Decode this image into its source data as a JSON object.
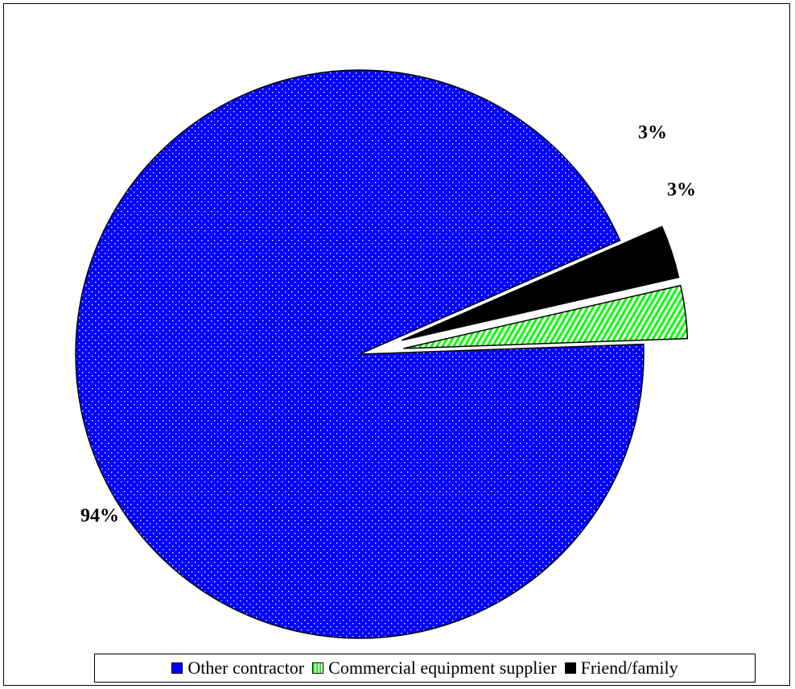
{
  "chart_data": {
    "type": "pie",
    "title": "",
    "slices": [
      {
        "label": "Other contractor",
        "value": 94,
        "display": "94%",
        "color": "#0000ff",
        "pattern": "dots",
        "exploded": false
      },
      {
        "label": "Commercial equipment supplier",
        "value": 3,
        "display": "3%",
        "color": "#00ff00",
        "pattern": "vertical-stripes",
        "exploded": true
      },
      {
        "label": "Friend/family",
        "value": 3,
        "display": "3%",
        "color": "#000000",
        "pattern": "solid",
        "exploded": true
      }
    ],
    "legend_position": "bottom"
  }
}
